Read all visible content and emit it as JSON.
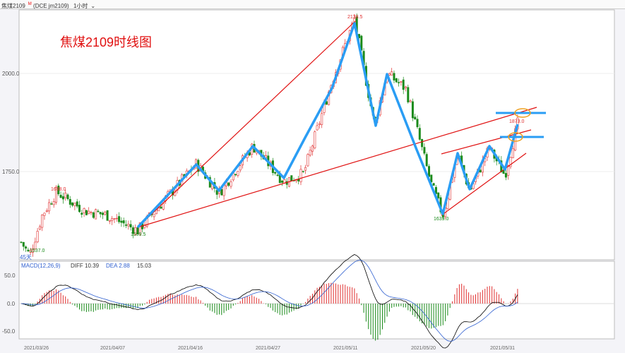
{
  "header": {
    "symbol": "焦煤2109",
    "flag": "M",
    "code": "(DCE jm2109)",
    "period": "1小时",
    "period_chevron": "chevron-down-icon"
  },
  "macd_legend": {
    "name": "MACD(12,26,9)",
    "diff": "DIFF 10.39",
    "dea": "DEA 2.88",
    "macd": "15.03"
  },
  "chart_data": {
    "type": "candlestick",
    "title": "焦煤2109时线图",
    "ylabel": "",
    "xlabel": "",
    "y_ticks": [
      "2000.0",
      "1750.0"
    ],
    "ylim": [
      1510,
      2170
    ],
    "x_ticks": [
      "2021/03/26",
      "2021/04/07",
      "2021/04/16",
      "2021/04/27",
      "2021/05/11",
      "2021/05/20",
      "2021/05/31"
    ],
    "price_path": [
      1570,
      1537,
      1640,
      1698,
      1650,
      1640,
      1599.5,
      1770,
      1695,
      1815,
      1725,
      1745,
      1980,
      2138.5,
      1870,
      2000,
      1960,
      1860,
      1720,
      1639,
      1795,
      1700,
      1810,
      1740,
      1873
    ],
    "annotations": [
      "2138.5",
      "1698.0",
      "1599.5",
      "1639.0",
      "1873.0",
      "1537.0"
    ],
    "bottom_left_label": "45天",
    "macd_ticks": [
      "50.0",
      "0.0",
      "-50.0"
    ],
    "colors": {
      "up": "#e03030",
      "down": "#1a8a1a",
      "zigzag": "#2a9df4",
      "trend": "#e01010",
      "diff": "#000000",
      "dea": "#3060d0"
    }
  }
}
